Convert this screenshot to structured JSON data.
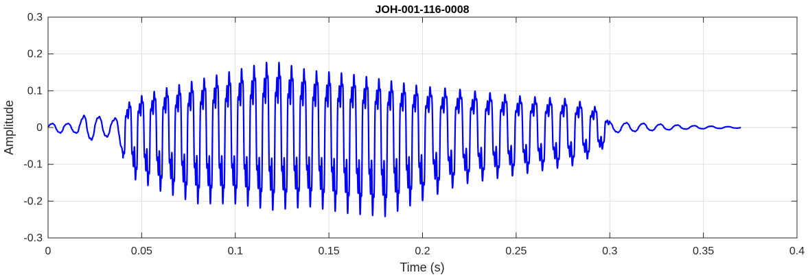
{
  "chart_data": {
    "type": "line",
    "title": "JOH-001-116-0008",
    "xlabel": "Time (s)",
    "ylabel": "Amplitude",
    "xlim": [
      0,
      0.4
    ],
    "ylim": [
      -0.3,
      0.3
    ],
    "xticks": [
      0,
      0.05,
      0.1,
      0.15,
      0.2,
      0.25,
      0.3,
      0.35,
      0.4
    ],
    "xtick_labels": [
      "0",
      "0.05",
      "0.1",
      "0.15",
      "0.2",
      "0.25",
      "0.3",
      "0.35",
      "0.4"
    ],
    "yticks": [
      -0.3,
      -0.2,
      -0.1,
      0,
      0.1,
      0.2,
      0.3
    ],
    "ytick_labels": [
      "-0.3",
      "-0.2",
      "-0.1",
      "0",
      "0.1",
      "0.2",
      "0.3"
    ],
    "grid": true,
    "box": true,
    "series": [
      {
        "color": "#0000ff",
        "duration": 0.37,
        "envelope": {
          "x": [
            0,
            0.015,
            0.02,
            0.035,
            0.045,
            0.06,
            0.08,
            0.1,
            0.12,
            0.14,
            0.16,
            0.18,
            0.2,
            0.22,
            0.25,
            0.28,
            0.295,
            0.3,
            0.32,
            0.34,
            0.37
          ],
          "pos": [
            0.015,
            0.015,
            0.05,
            0.03,
            0.09,
            0.12,
            0.15,
            0.18,
            0.21,
            0.18,
            0.17,
            0.15,
            0.13,
            0.12,
            0.1,
            0.09,
            0.06,
            0.02,
            0.015,
            0.008,
            0.002
          ],
          "neg": [
            -0.02,
            -0.02,
            -0.05,
            -0.03,
            -0.16,
            -0.2,
            -0.24,
            -0.24,
            -0.26,
            -0.25,
            -0.27,
            -0.28,
            -0.23,
            -0.18,
            -0.15,
            -0.12,
            -0.08,
            -0.02,
            -0.012,
            -0.006,
            -0.002
          ]
        }
      }
    ]
  }
}
